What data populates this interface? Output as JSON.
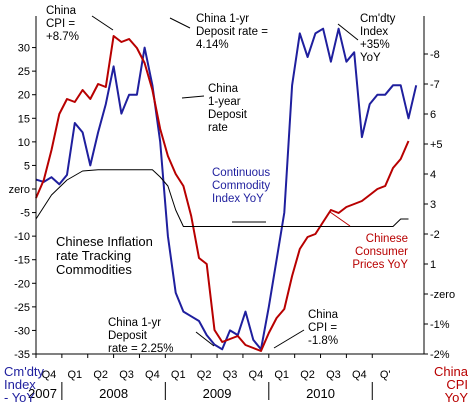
{
  "chart_data": {
    "type": "line",
    "title": "Chinese Inflation rate Tracking Commodities",
    "x_quarters": [
      "Q4",
      "Q1",
      "Q2",
      "Q3",
      "Q4",
      "Q1",
      "Q2",
      "Q3",
      "Q4",
      "Q1",
      "Q2",
      "Q3",
      "Q4",
      "Q'"
    ],
    "x_years": [
      "2007",
      "2008",
      "2009",
      "2010"
    ],
    "left_axis": {
      "label_line1": "Cm'dty",
      "label_line2": "Index",
      "label_line3": "- YoY",
      "range": [
        -35,
        35
      ],
      "ticks": [
        {
          "v": 30,
          "t": "30"
        },
        {
          "v": 25,
          "t": "25"
        },
        {
          "v": 20,
          "t": "20"
        },
        {
          "v": 15,
          "t": "15"
        },
        {
          "v": 10,
          "t": "10"
        },
        {
          "v": 5,
          "t": "5"
        },
        {
          "v": 0,
          "t": "zero"
        },
        {
          "v": -5,
          "t": "-5"
        },
        {
          "v": -10,
          "t": "-10"
        },
        {
          "v": -15,
          "t": "-15"
        },
        {
          "v": -20,
          "t": "-20"
        },
        {
          "v": -25,
          "t": "-25"
        },
        {
          "v": -30,
          "t": "-30"
        },
        {
          "v": -35,
          "t": "-35"
        }
      ]
    },
    "right_axis": {
      "label_line1": "China",
      "label_line2": "CPI",
      "label_line3": "YoY",
      "range": [
        -2,
        9
      ],
      "ticks": [
        {
          "v": 8,
          "t": "-8"
        },
        {
          "v": 7,
          "t": "-7"
        },
        {
          "v": 6,
          "t": "6"
        },
        {
          "v": 5,
          "t": "+5"
        },
        {
          "v": 4,
          "t": "4"
        },
        {
          "v": 3,
          "t": "3"
        },
        {
          "v": 2,
          "t": "-2"
        },
        {
          "v": 1,
          "t": "1"
        },
        {
          "v": 0,
          "t": "-zero"
        },
        {
          "v": -1,
          "t": "-1%"
        },
        {
          "v": -2,
          "t": "-2%"
        }
      ]
    },
    "series": [
      {
        "name": "Continuous Commodity Index YoY",
        "axis": "left",
        "color": "#1f1f9e",
        "points": [
          [
            0,
            2
          ],
          [
            0.3,
            1.5
          ],
          [
            0.6,
            2.5
          ],
          [
            0.9,
            1
          ],
          [
            1.2,
            3
          ],
          [
            1.5,
            14
          ],
          [
            1.8,
            12
          ],
          [
            2.1,
            5
          ],
          [
            2.4,
            12
          ],
          [
            2.7,
            18
          ],
          [
            3.0,
            26
          ],
          [
            3.3,
            16
          ],
          [
            3.6,
            20
          ],
          [
            3.9,
            20
          ],
          [
            4.2,
            30
          ],
          [
            4.5,
            22
          ],
          [
            4.8,
            10
          ],
          [
            5.1,
            -10
          ],
          [
            5.4,
            -22
          ],
          [
            5.7,
            -26
          ],
          [
            6.0,
            -27
          ],
          [
            6.3,
            -28
          ],
          [
            6.6,
            -31
          ],
          [
            6.9,
            -33
          ],
          [
            7.2,
            -34
          ],
          [
            7.5,
            -30
          ],
          [
            7.8,
            -31
          ],
          [
            8.1,
            -26
          ],
          [
            8.4,
            -32
          ],
          [
            8.7,
            -34
          ],
          [
            9.0,
            -25
          ],
          [
            9.3,
            -15
          ],
          [
            9.6,
            -5
          ],
          [
            9.9,
            22
          ],
          [
            10.2,
            33
          ],
          [
            10.5,
            28
          ],
          [
            10.8,
            33
          ],
          [
            11.1,
            34
          ],
          [
            11.4,
            27
          ],
          [
            11.7,
            34
          ],
          [
            12.0,
            27
          ],
          [
            12.3,
            29
          ],
          [
            12.6,
            11
          ],
          [
            12.9,
            18
          ],
          [
            13.2,
            20
          ],
          [
            13.5,
            20
          ],
          [
            13.8,
            22
          ],
          [
            14.1,
            22
          ],
          [
            14.4,
            15
          ],
          [
            14.7,
            22
          ]
        ]
      },
      {
        "name": "Chinese Consumer Prices YoY",
        "axis": "right",
        "color": "#b80000",
        "points": [
          [
            0,
            3.2
          ],
          [
            0.3,
            3.8
          ],
          [
            0.6,
            4.8
          ],
          [
            0.9,
            6.0
          ],
          [
            1.2,
            6.5
          ],
          [
            1.5,
            6.4
          ],
          [
            1.8,
            6.8
          ],
          [
            2.1,
            6.5
          ],
          [
            2.4,
            7.0
          ],
          [
            2.7,
            6.9
          ],
          [
            3.0,
            8.6
          ],
          [
            3.3,
            8.4
          ],
          [
            3.6,
            8.5
          ],
          [
            3.9,
            8.2
          ],
          [
            4.2,
            7.7
          ],
          [
            4.5,
            6.8
          ],
          [
            4.8,
            5.5
          ],
          [
            5.1,
            4.6
          ],
          [
            5.4,
            4.0
          ],
          [
            5.7,
            3.6
          ],
          [
            6.0,
            2.6
          ],
          [
            6.3,
            1.2
          ],
          [
            6.6,
            1.0
          ],
          [
            6.9,
            -1.2
          ],
          [
            7.2,
            -1.6
          ],
          [
            7.5,
            -1.5
          ],
          [
            7.8,
            -1.4
          ],
          [
            8.1,
            -1.7
          ],
          [
            8.4,
            -1.8
          ],
          [
            8.7,
            -1.9
          ],
          [
            9.0,
            -1.3
          ],
          [
            9.3,
            -0.8
          ],
          [
            9.6,
            -0.5
          ],
          [
            9.9,
            0.6
          ],
          [
            10.2,
            1.5
          ],
          [
            10.5,
            1.9
          ],
          [
            10.8,
            2.0
          ],
          [
            11.1,
            2.4
          ],
          [
            11.4,
            2.8
          ],
          [
            11.7,
            2.7
          ],
          [
            12.0,
            2.9
          ],
          [
            12.3,
            3.0
          ],
          [
            12.6,
            3.1
          ],
          [
            12.9,
            3.3
          ],
          [
            13.2,
            3.5
          ],
          [
            13.5,
            3.6
          ],
          [
            13.8,
            4.2
          ],
          [
            14.1,
            4.5
          ],
          [
            14.4,
            5.1
          ]
        ]
      },
      {
        "name": "China 1-year Deposit rate",
        "axis": "right",
        "color": "#000000",
        "points": [
          [
            0,
            2.5
          ],
          [
            0.6,
            3.3
          ],
          [
            1.2,
            3.8
          ],
          [
            1.8,
            4.1
          ],
          [
            2.4,
            4.14
          ],
          [
            3.0,
            4.14
          ],
          [
            3.3,
            4.14
          ],
          [
            3.6,
            4.14
          ],
          [
            3.9,
            4.14
          ],
          [
            4.2,
            4.14
          ],
          [
            4.5,
            4.14
          ],
          [
            4.8,
            3.9
          ],
          [
            5.1,
            3.6
          ],
          [
            5.4,
            2.8
          ],
          [
            5.7,
            2.25
          ],
          [
            6.0,
            2.25
          ],
          [
            6.3,
            2.25
          ],
          [
            6.6,
            2.25
          ],
          [
            6.9,
            2.25
          ],
          [
            7.2,
            2.25
          ],
          [
            7.5,
            2.25
          ],
          [
            7.8,
            2.25
          ],
          [
            8.1,
            2.25
          ],
          [
            8.4,
            2.25
          ],
          [
            8.7,
            2.25
          ],
          [
            9.0,
            2.25
          ],
          [
            9.3,
            2.25
          ],
          [
            9.6,
            2.25
          ],
          [
            9.9,
            2.25
          ],
          [
            10.2,
            2.25
          ],
          [
            10.5,
            2.25
          ],
          [
            10.8,
            2.25
          ],
          [
            11.1,
            2.25
          ],
          [
            11.4,
            2.25
          ],
          [
            11.7,
            2.25
          ],
          [
            12.0,
            2.25
          ],
          [
            12.3,
            2.25
          ],
          [
            12.6,
            2.25
          ],
          [
            12.9,
            2.25
          ],
          [
            13.2,
            2.25
          ],
          [
            13.5,
            2.25
          ],
          [
            13.8,
            2.25
          ],
          [
            14.1,
            2.5
          ],
          [
            14.4,
            2.5
          ]
        ]
      }
    ],
    "annotations": {
      "cpi_peak": [
        "China",
        "CPI =",
        "+8.7%"
      ],
      "deposit_peak": [
        "China 1-yr",
        "Deposit rate =",
        "4.14%"
      ],
      "cmdty_peak": [
        "Cm'dty",
        "Index",
        "+35%",
        "YoY"
      ],
      "deposit_label": [
        "China",
        "1-year",
        "Deposit",
        "rate"
      ],
      "cmdty_label": [
        "Continuous",
        "Commodity",
        "Index YoY"
      ],
      "title": [
        "Chinese Inflation",
        "rate Tracking",
        "Commodities"
      ],
      "consumer_label": [
        "Chinese",
        "Consumer",
        "Prices YoY"
      ],
      "deposit_low": [
        "China 1-yr",
        "Deposit",
        "rate = 2.25%"
      ],
      "cpi_low": [
        "China",
        "CPI =",
        "-1.8%"
      ]
    }
  }
}
